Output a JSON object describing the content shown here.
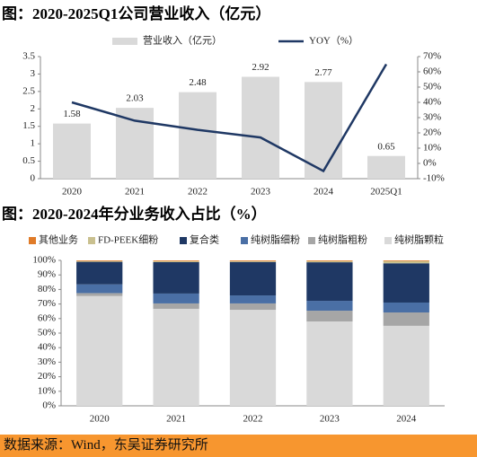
{
  "chart_data": [
    {
      "type": "bar",
      "title": "图：2020-2025Q1公司营业收入（亿元）",
      "categories": [
        "2020",
        "2021",
        "2022",
        "2023",
        "2024",
        "2025Q1"
      ],
      "series": [
        {
          "name": "营业收入（亿元）",
          "type": "bar",
          "color": "#d9d9d9",
          "values": [
            1.58,
            2.03,
            2.48,
            2.92,
            2.77,
            0.65
          ]
        },
        {
          "name": "YOY（%）",
          "type": "line",
          "axis": "y2",
          "color": "#1f3864",
          "values": [
            40,
            28,
            22,
            17,
            -5,
            65
          ]
        }
      ],
      "ylim": [
        0,
        3.5
      ],
      "yticks": [
        0,
        0.5,
        1,
        1.5,
        2,
        2.5,
        3,
        3.5
      ],
      "y2lim": [
        -10,
        70
      ],
      "y2ticks": [
        {
          "value": -10,
          "label": "-10%"
        },
        {
          "value": 0,
          "label": "0%"
        },
        {
          "value": 10,
          "label": "10%"
        },
        {
          "value": 20,
          "label": "20%"
        },
        {
          "value": 30,
          "label": "30%"
        },
        {
          "value": 40,
          "label": "40%"
        },
        {
          "value": 50,
          "label": "50%"
        },
        {
          "value": 60,
          "label": "60%"
        },
        {
          "value": 70,
          "label": "70%"
        }
      ],
      "data_labels": true,
      "grid": false,
      "legend": "top"
    },
    {
      "type": "stacked_bar",
      "title": "图：2020-2024年分业务收入占比（%）",
      "categories": [
        "2020",
        "2021",
        "2022",
        "2023",
        "2024"
      ],
      "series": [
        {
          "name": "其他业务",
          "color": "#e07b28",
          "values": [
            0.5,
            0.5,
            0.5,
            0.5,
            0.5
          ]
        },
        {
          "name": "FD-PEEK细粉",
          "color": "#c9c08f",
          "values": [
            0.5,
            0.7,
            0.6,
            0.8,
            1.5
          ]
        },
        {
          "name": "复合类",
          "color": "#1f3864",
          "values": [
            15.5,
            21.6,
            23,
            26.5,
            27
          ]
        },
        {
          "name": "纯树脂细粉",
          "color": "#4a6fa5",
          "values": [
            6,
            6.8,
            5.5,
            6.8,
            6.8
          ]
        },
        {
          "name": "纯树脂粗粉",
          "color": "#a6a6a6",
          "values": [
            2,
            3.7,
            4.4,
            7.4,
            9.2
          ]
        },
        {
          "name": "纯树脂颗粒",
          "color": "#d9d9d9",
          "values": [
            75.5,
            66.7,
            66,
            58,
            55
          ]
        }
      ],
      "ylim": [
        0,
        100
      ],
      "yticks": [
        {
          "value": 0,
          "label": "0%"
        },
        {
          "value": 10,
          "label": "10%"
        },
        {
          "value": 20,
          "label": "20%"
        },
        {
          "value": 30,
          "label": "30%"
        },
        {
          "value": 40,
          "label": "40%"
        },
        {
          "value": 50,
          "label": "50%"
        },
        {
          "value": 60,
          "label": "60%"
        },
        {
          "value": 70,
          "label": "70%"
        },
        {
          "value": 80,
          "label": "80%"
        },
        {
          "value": 90,
          "label": "90%"
        },
        {
          "value": 100,
          "label": "100%"
        }
      ],
      "grid": false,
      "legend": "top"
    }
  ],
  "source": "数据来源：Wind，东吴证券研究所"
}
